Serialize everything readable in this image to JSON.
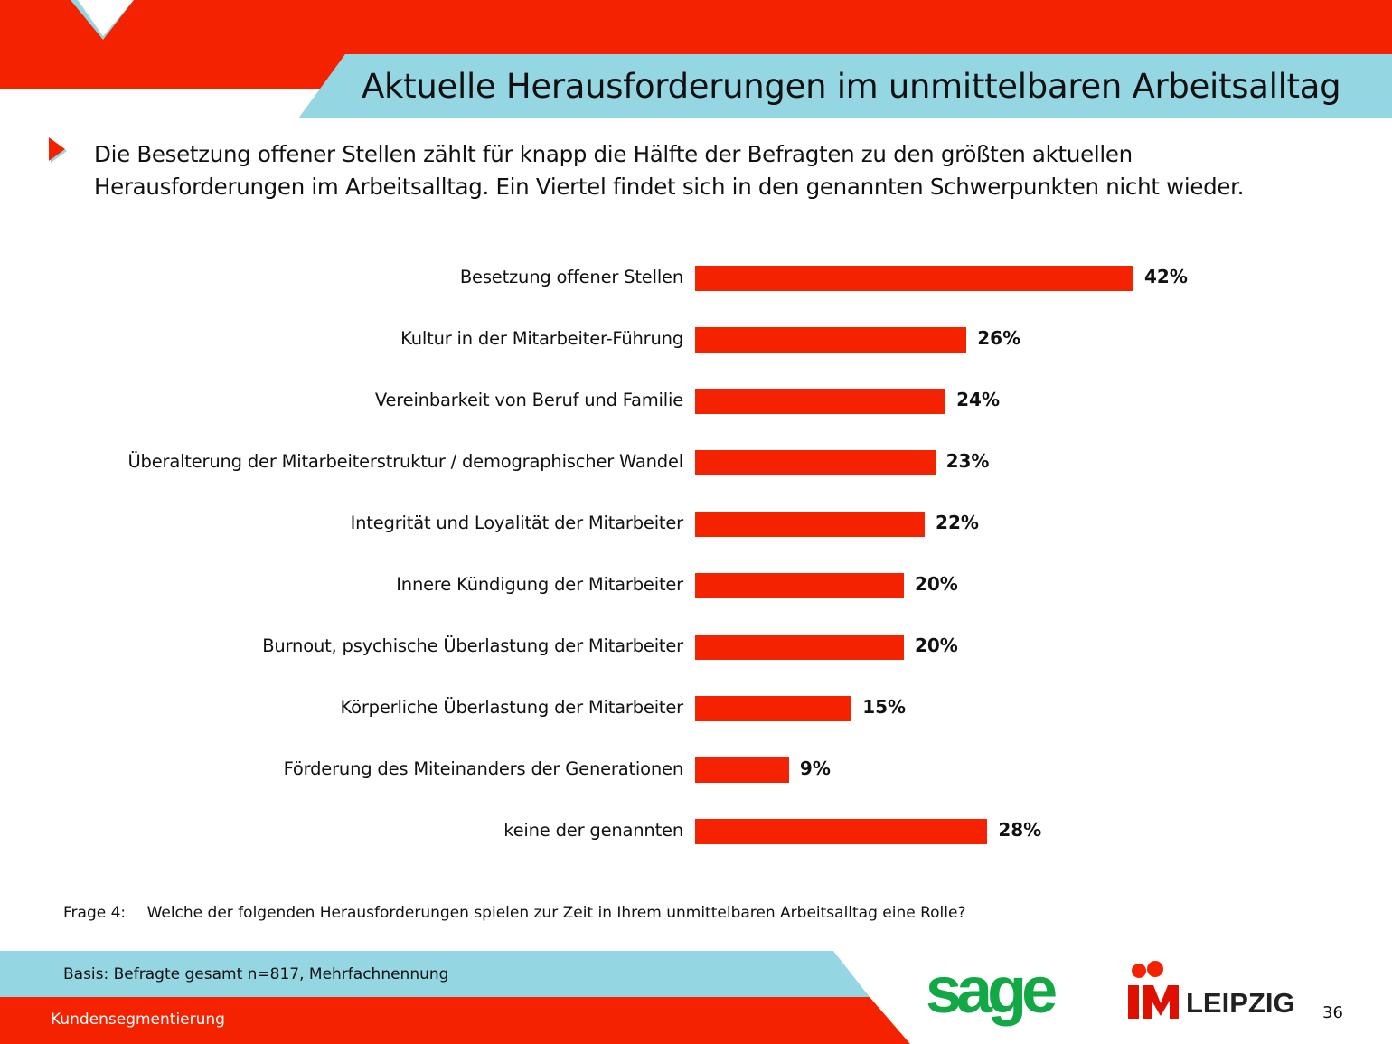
{
  "header": {
    "title": "Aktuelle Herausforderungen im unmittelbaren Arbeitsalltag"
  },
  "summary": {
    "line1": "Die Besetzung offener Stellen zählt für knapp die Hälfte der Befragten zu den größten aktuellen",
    "line2": "Herausforderungen im Arbeitsalltag. Ein Viertel findet sich in den genannten Schwerpunkten nicht wieder."
  },
  "chart_data": {
    "type": "bar",
    "orientation": "horizontal",
    "categories": [
      "Besetzung offener Stellen",
      "Kultur in der Mitarbeiter-Führung",
      "Vereinbarkeit von Beruf und Familie",
      "Überalterung der Mitarbeiterstruktur / demographischer Wandel",
      "Integrität und Loyalität der Mitarbeiter",
      "Innere Kündigung der Mitarbeiter",
      "Burnout, psychische Überlastung der Mitarbeiter",
      "Körperliche Überlastung der Mitarbeiter",
      "Förderung des Miteinanders der Generationen",
      "keine der genannten"
    ],
    "values": [
      42,
      26,
      24,
      23,
      22,
      20,
      20,
      15,
      9,
      28
    ],
    "labels": [
      "42%",
      "26%",
      "24%",
      "23%",
      "22%",
      "20%",
      "20%",
      "15%",
      "9%",
      "28%"
    ],
    "unit": "%",
    "color": "#f52200"
  },
  "footer": {
    "frage_label": "Frage 4:",
    "frage_text": "Welche der folgenden Herausforderungen spielen zur Zeit in Ihrem unmittelbaren Arbeitsalltag eine Rolle?",
    "basis": "Basis: Befragte gesamt n=817, Mehrfachnennung",
    "segment": "Kundensegmentierung",
    "page_number": "36",
    "logo_sage": "sage",
    "logo_im": "IM",
    "logo_leipzig": "LEIPZIG"
  },
  "colors": {
    "red": "#f52200",
    "blue": "#95d6e3",
    "green": "#12a845"
  }
}
